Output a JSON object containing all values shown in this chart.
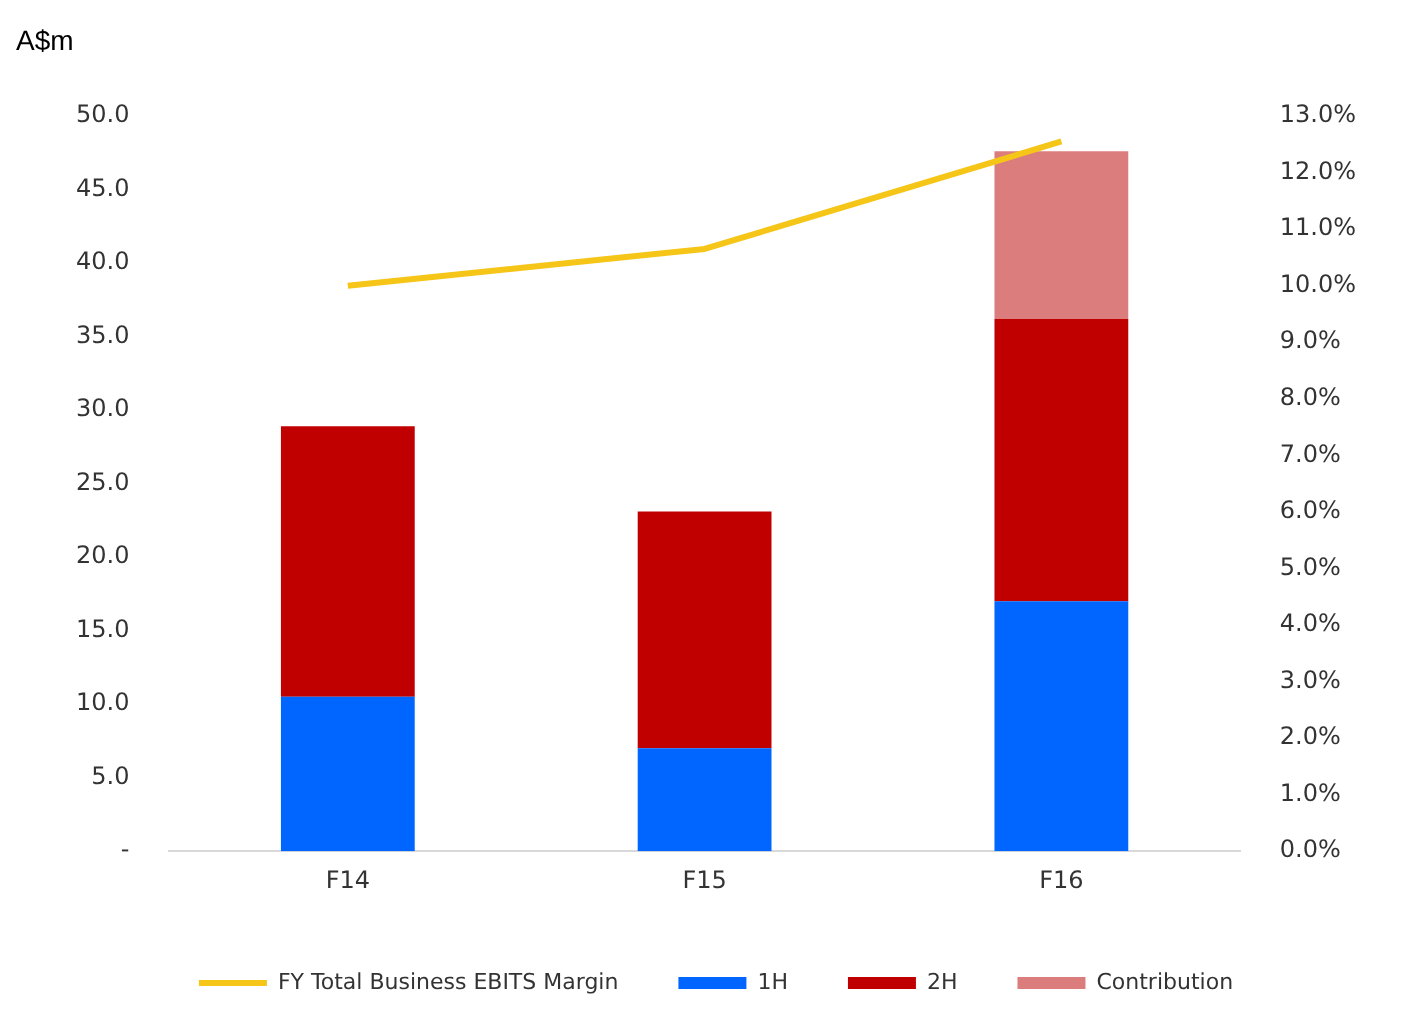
{
  "chart_data": {
    "type": "bar",
    "ylabel": "A$m",
    "categories": [
      "F14",
      "F15",
      "F16"
    ],
    "stacked": true,
    "series": [
      {
        "name": "1H",
        "color": "#0066ff",
        "values": [
          10.5,
          7.0,
          17.0
        ]
      },
      {
        "name": "2H",
        "color": "#c00000",
        "values": [
          18.4,
          16.1,
          19.2
        ]
      },
      {
        "name": "Contribution",
        "color": "#dc7d7d",
        "values": [
          null,
          null,
          11.4
        ]
      },
      {
        "name": "FY Total Business EBITS Margin",
        "type": "line",
        "axis": "y2",
        "color": "#f5c518",
        "values": [
          10.0,
          10.65,
          12.55
        ]
      }
    ],
    "ylim": [
      0,
      50
    ],
    "yticks": [
      {
        "value": 0,
        "label": "-"
      },
      {
        "value": 5,
        "label": "5.0"
      },
      {
        "value": 10,
        "label": "10.0"
      },
      {
        "value": 15,
        "label": "15.0"
      },
      {
        "value": 20,
        "label": "20.0"
      },
      {
        "value": 25,
        "label": "25.0"
      },
      {
        "value": 30,
        "label": "30.0"
      },
      {
        "value": 35,
        "label": "35.0"
      },
      {
        "value": 40,
        "label": "40.0"
      },
      {
        "value": 45,
        "label": "45.0"
      },
      {
        "value": 50,
        "label": "50.0"
      }
    ],
    "y2lim": [
      0,
      13
    ],
    "y2ticks": [
      {
        "value": 0,
        "label": "0.0%"
      },
      {
        "value": 1,
        "label": "1.0%"
      },
      {
        "value": 2,
        "label": "2.0%"
      },
      {
        "value": 3,
        "label": "3.0%"
      },
      {
        "value": 4,
        "label": "4.0%"
      },
      {
        "value": 5,
        "label": "5.0%"
      },
      {
        "value": 6,
        "label": "6.0%"
      },
      {
        "value": 7,
        "label": "7.0%"
      },
      {
        "value": 8,
        "label": "8.0%"
      },
      {
        "value": 9,
        "label": "9.0%"
      },
      {
        "value": 10,
        "label": "10.0%"
      },
      {
        "value": 11,
        "label": "11.0%"
      },
      {
        "value": 12,
        "label": "12.0%"
      },
      {
        "value": 13,
        "label": "13.0%"
      }
    ],
    "grid": false,
    "legend": "bottom",
    "marker": "none",
    "line_style": "solid"
  }
}
